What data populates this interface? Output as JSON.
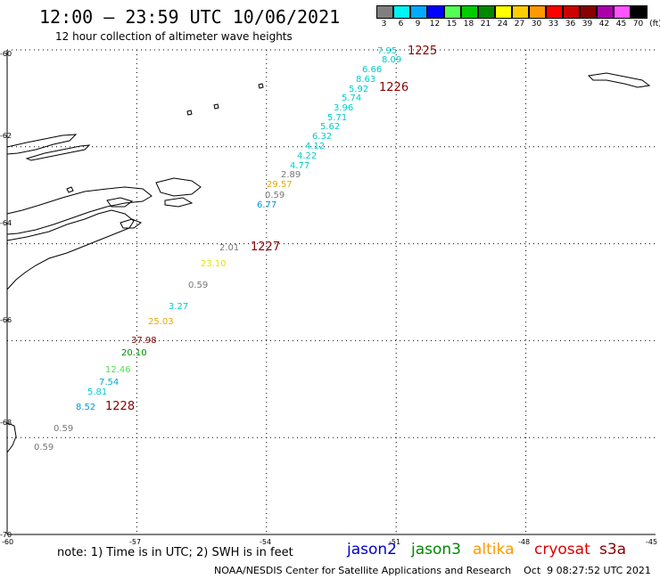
{
  "title": "12:00 – 23:59 UTC 10/06/2021",
  "subtitle": "12 hour collection of altimeter wave heights",
  "legend": {
    "unit": "(ft)",
    "items": [
      {
        "label": "3",
        "color": "#7f7f7f"
      },
      {
        "label": "6",
        "color": "#00f5f5"
      },
      {
        "label": "9",
        "color": "#00aaff"
      },
      {
        "label": "12",
        "color": "#0000ff"
      },
      {
        "label": "15",
        "color": "#55ff55"
      },
      {
        "label": "18",
        "color": "#00cc00"
      },
      {
        "label": "21",
        "color": "#008800"
      },
      {
        "label": "24",
        "color": "#ffff00"
      },
      {
        "label": "27",
        "color": "#ffcc00"
      },
      {
        "label": "30",
        "color": "#ff9900"
      },
      {
        "label": "33",
        "color": "#ff0000"
      },
      {
        "label": "36",
        "color": "#cc0000"
      },
      {
        "label": "39",
        "color": "#880000"
      },
      {
        "label": "42",
        "color": "#aa00aa"
      },
      {
        "label": "45",
        "color": "#ff55ff"
      },
      {
        "label": "70",
        "color": "#000000"
      }
    ]
  },
  "lat_labels": [
    "-60",
    "-62",
    "-64",
    "-66",
    "-68",
    "-70"
  ],
  "lon_labels": [
    "-60",
    "-57",
    "-54",
    "-51",
    "-48",
    "-45"
  ],
  "time_labels": [
    "1225",
    "1226",
    "1227",
    "1228"
  ],
  "time_label_color": "#880000",
  "observations": [
    {
      "v": "7.95",
      "c": "#00cccc"
    },
    {
      "v": "8.09",
      "c": "#00cccc"
    },
    {
      "v": "6.66",
      "c": "#00cccc"
    },
    {
      "v": "8.63",
      "c": "#00cccc"
    },
    {
      "v": "5.92",
      "c": "#00cccc"
    },
    {
      "v": "5.74",
      "c": "#00cccc"
    },
    {
      "v": "3.96",
      "c": "#00cccc"
    },
    {
      "v": "5.71",
      "c": "#00cccc"
    },
    {
      "v": "5.62",
      "c": "#00cccc"
    },
    {
      "v": "6.32",
      "c": "#00cccc"
    },
    {
      "v": "4.12",
      "c": "#00cccc"
    },
    {
      "v": "4.22",
      "c": "#00cccc"
    },
    {
      "v": "4.77",
      "c": "#00cccc"
    },
    {
      "v": "2.89",
      "c": "#777777"
    },
    {
      "v": "29.57",
      "c": "#e6a800"
    },
    {
      "v": "0.59",
      "c": "#777777"
    },
    {
      "v": "6.77",
      "c": "#0099dd"
    },
    {
      "v": "2.01",
      "c": "#777777"
    },
    {
      "v": "23.10",
      "c": "#e6e600"
    },
    {
      "v": "0.59",
      "c": "#777777"
    },
    {
      "v": "3.27",
      "c": "#00cccc"
    },
    {
      "v": "25.03",
      "c": "#e6a800"
    },
    {
      "v": "37.98",
      "c": "#880000"
    },
    {
      "v": "20.10",
      "c": "#008800"
    },
    {
      "v": "12.46",
      "c": "#55dd55"
    },
    {
      "v": "7.54",
      "c": "#00aacc"
    },
    {
      "v": "5.81",
      "c": "#00cccc"
    },
    {
      "v": "8.52",
      "c": "#0099dd"
    },
    {
      "v": "0.59",
      "c": "#777777"
    },
    {
      "v": "0.59",
      "c": "#777777"
    }
  ],
  "note": "note: 1) Time is in UTC; 2) SWH is in feet",
  "satellites": [
    {
      "name": "jason2",
      "color": "#0000cc"
    },
    {
      "name": "jason3",
      "color": "#008800"
    },
    {
      "name": "altika",
      "color": "#ff9900"
    },
    {
      "name": "cryosat",
      "color": "#dd0000"
    },
    {
      "name": "s3a",
      "color": "#880000"
    }
  ],
  "credit": "NOAA/NESDIS Center for Satellite Applications and Research    Oct  9 08:27:52 UTC 2021"
}
